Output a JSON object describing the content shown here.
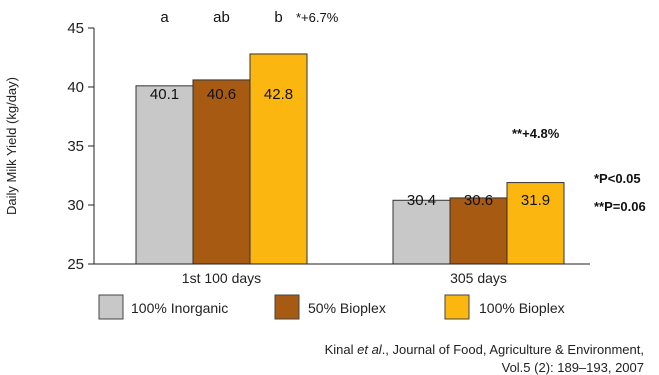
{
  "chart_data": {
    "type": "bar",
    "title": "",
    "xlabel": "",
    "ylabel": "Daily Milk Yield (kg/day)",
    "ylim": [
      25,
      45
    ],
    "yticks": [
      25,
      30,
      35,
      40,
      45
    ],
    "categories": [
      "1st 100 days",
      "305 days"
    ],
    "series": [
      {
        "name": "100% Inorganic",
        "color": "#c8c8c8",
        "values": [
          40.1,
          30.4
        ]
      },
      {
        "name": "50% Bioplex",
        "color": "#a65a12",
        "values": [
          40.6,
          30.6
        ]
      },
      {
        "name": "100% Bioplex",
        "color": "#fbb710",
        "values": [
          42.8,
          31.9
        ]
      }
    ],
    "data_labels": [
      [
        "40.1",
        "40.6",
        "42.8"
      ],
      [
        "30.4",
        "30.6",
        "31.9"
      ]
    ],
    "significance_letters": [
      "a",
      "ab",
      "b"
    ],
    "annotations": {
      "group1_increase": "*+6.7%",
      "group2_increase": "**+4.8%",
      "p1": "*P<0.05",
      "p2": "**P=0.06"
    },
    "grid": false,
    "legend_position": "bottom"
  },
  "citation": {
    "authors": "Kinal ",
    "etal": "et al",
    "rest": "., Journal of Food, Agriculture & Environment,",
    "line2": "Vol.5 (2): 189–193, 2007"
  }
}
